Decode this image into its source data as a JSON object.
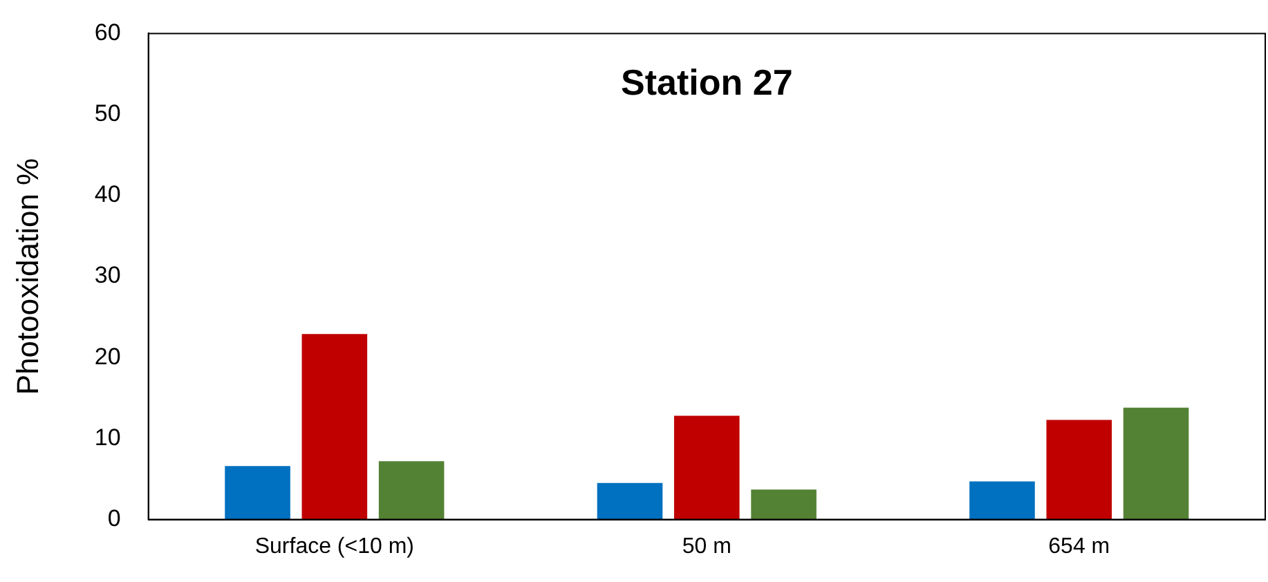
{
  "chart_data": {
    "type": "bar",
    "title": "Station 27",
    "ylabel": "Photooxidation %",
    "categories": [
      "Surface (<10 m)",
      "50 m",
      "654 m"
    ],
    "series": [
      {
        "color": "#0070c0",
        "values": [
          6.6,
          4.5,
          4.7
        ]
      },
      {
        "color": "#c00000",
        "values": [
          22.9,
          12.8,
          12.3
        ]
      },
      {
        "color": "#548235",
        "values": [
          7.2,
          3.7,
          13.8
        ]
      }
    ],
    "ylim": [
      0,
      60
    ],
    "yticks": [
      0,
      10,
      20,
      30,
      40,
      50,
      60
    ],
    "grid": false,
    "legend": false
  }
}
